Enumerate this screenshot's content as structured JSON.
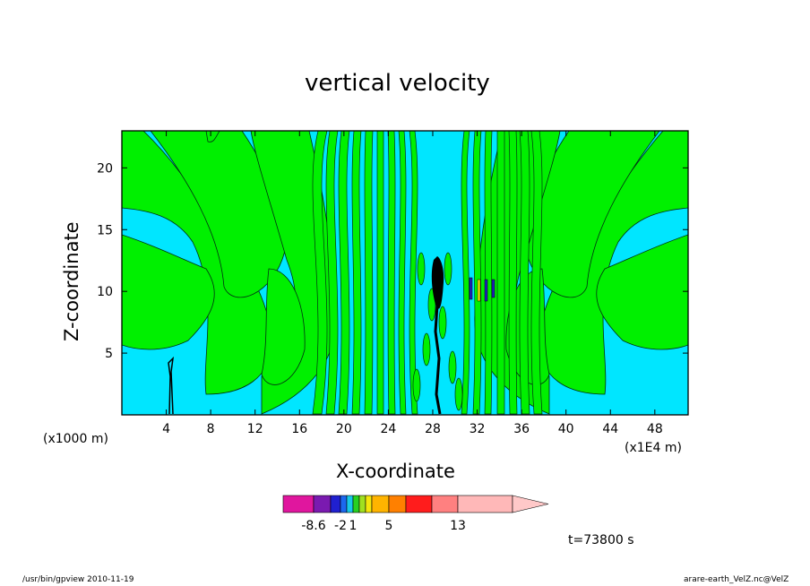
{
  "chart_data": {
    "type": "heatmap",
    "title": "vertical velocity",
    "xlabel": "X-coordinate",
    "ylabel": "Z-coordinate",
    "x_unit_left": "(x1000 m)",
    "x_unit_right": "(x1E4 m)",
    "xlim": [
      0,
      51
    ],
    "ylim": [
      0,
      23
    ],
    "x_ticks": [
      4,
      8,
      12,
      16,
      20,
      24,
      28,
      32,
      36,
      40,
      44,
      48
    ],
    "y_ticks": [
      5,
      10,
      15,
      20
    ],
    "colorbar": {
      "tick_labels": [
        "-8.6",
        "-2",
        "1",
        "5",
        "13"
      ],
      "colors": [
        "#e0169e",
        "#7a1ab0",
        "#2020d0",
        "#1c68ee",
        "#18c8e8",
        "#28d020",
        "#a0e020",
        "#f4e60c",
        "#ffb400",
        "#ff8000",
        "#ff1c1c",
        "#ff8080",
        "#ffb8b8",
        "#ffc8c8"
      ]
    },
    "field_colors": {
      "background": "#00e6ff",
      "positive": "#00f000",
      "strong_negative": "#2020c0",
      "updraft_core": "#000000"
    },
    "time_label": "t=73800 s"
  },
  "footer": {
    "left": "/usr/bin/gpview   2010-11-19",
    "right": "arare-earth_VelZ.nc@VelZ"
  }
}
